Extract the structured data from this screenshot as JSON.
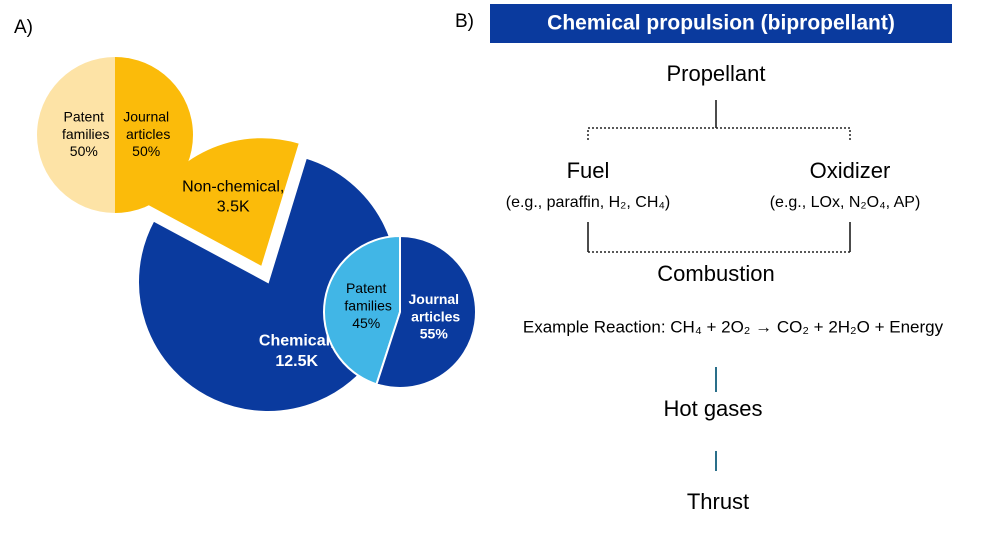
{
  "panel_a": {
    "label": "A)"
  },
  "chart_data": [
    {
      "type": "pie",
      "categories": [
        "Chemical,",
        "Non-chemical,"
      ],
      "values": [
        12500,
        3500
      ],
      "value_labels": [
        "12.5K",
        "3.5K"
      ],
      "colors": [
        "#0a3a9e",
        "#fbbb0a"
      ]
    },
    {
      "type": "pie",
      "categories": [
        "Patent families",
        "Journal articles"
      ],
      "values": [
        50,
        50
      ],
      "value_labels": [
        "50%",
        "50%"
      ],
      "colors": [
        "#fde3a6",
        "#fbbb0a"
      ]
    },
    {
      "type": "pie",
      "categories": [
        "Patent families",
        "Journal articles"
      ],
      "values": [
        45,
        55
      ],
      "value_labels": [
        "45%",
        "55%"
      ],
      "colors": [
        "#41b6e6",
        "#0a3a9e"
      ]
    }
  ],
  "panel_b": {
    "label": "B)",
    "title": "Chemical propulsion (bipropellant)",
    "propellant": "Propellant",
    "fuel": {
      "name": "Fuel",
      "example": "(e.g., paraffin, H₂, CH₄)"
    },
    "oxidizer": {
      "name": "Oxidizer",
      "example": "(e.g., LOx, N₂O₄, AP)"
    },
    "combustion": "Combustion",
    "reaction": "Example Reaction: CH₄ + 2O₂ → CO₂ + 2H₂O + Energy",
    "hot_gases": "Hot gases",
    "thrust": "Thrust"
  }
}
